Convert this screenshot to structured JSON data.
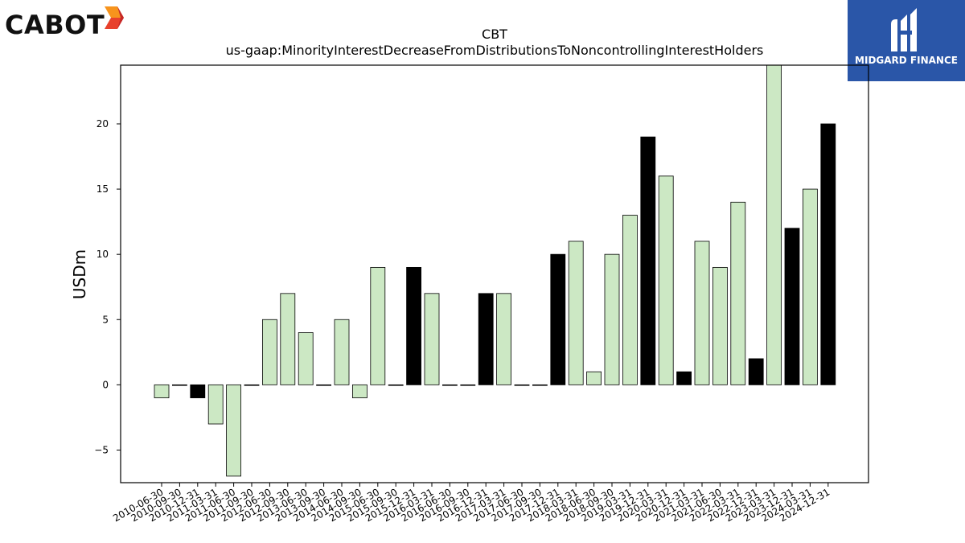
{
  "brand_left": {
    "name": "CABOT",
    "icon": "cabot-arrow-logo-icon",
    "colors": [
      "#f7941d",
      "#e8412c",
      "#c62828"
    ]
  },
  "brand_right": {
    "name": "MIDGARD FINANCE",
    "icon": "midgard-monogram-icon",
    "background": "#2a56a8"
  },
  "chart_data": {
    "type": "bar",
    "title": "CBT",
    "subtitle": "us-gaap:MinorityInterestDecreaseFromDistributionsToNoncontrollingInterestHolders",
    "xlabel": "",
    "ylabel": "USDm",
    "ylim": [
      -7.5,
      24.5
    ],
    "yticks": [
      -5,
      0,
      5,
      10,
      15,
      20
    ],
    "ytick_labels": [
      "−5",
      "0",
      "5",
      "10",
      "15",
      "20"
    ],
    "grid": false,
    "legend": "none",
    "colors": {
      "annual": "#000000",
      "quarterly": "#cce8c4",
      "edge": "#000000"
    },
    "categories": [
      "2010-06-30",
      "2010-09-30",
      "2010-12-31",
      "2011-03-31",
      "2011-06-30",
      "2011-09-30",
      "2012-06-30",
      "2012-09-30",
      "2013-06-30",
      "2013-09-30",
      "2014-06-30",
      "2014-09-30",
      "2015-06-30",
      "2015-09-30",
      "2015-12-31",
      "2016-03-31",
      "2016-06-30",
      "2016-09-30",
      "2016-12-31",
      "2017-03-31",
      "2017-06-30",
      "2017-09-30",
      "2017-12-31",
      "2018-03-31",
      "2018-06-30",
      "2018-09-30",
      "2019-03-31",
      "2019-12-31",
      "2020-03-31",
      "2020-12-31",
      "2021-03-31",
      "2021-06-30",
      "2022-03-31",
      "2022-12-31",
      "2023-03-31",
      "2023-12-31",
      "2024-03-31",
      "2024-12-31"
    ],
    "values": [
      -1,
      0,
      -1,
      -3,
      -7,
      0,
      5,
      7,
      4,
      0,
      5,
      -1,
      9,
      0,
      9,
      7,
      0,
      0,
      7,
      7,
      0,
      0,
      10,
      11,
      1,
      10,
      13,
      19,
      16,
      1,
      11,
      9,
      14,
      2,
      25,
      12,
      15,
      20
    ],
    "annual": [
      false,
      false,
      true,
      false,
      false,
      false,
      false,
      false,
      false,
      false,
      false,
      false,
      false,
      false,
      true,
      false,
      false,
      false,
      true,
      false,
      false,
      false,
      true,
      false,
      false,
      false,
      false,
      true,
      false,
      true,
      false,
      false,
      false,
      true,
      false,
      true,
      false,
      true
    ]
  }
}
